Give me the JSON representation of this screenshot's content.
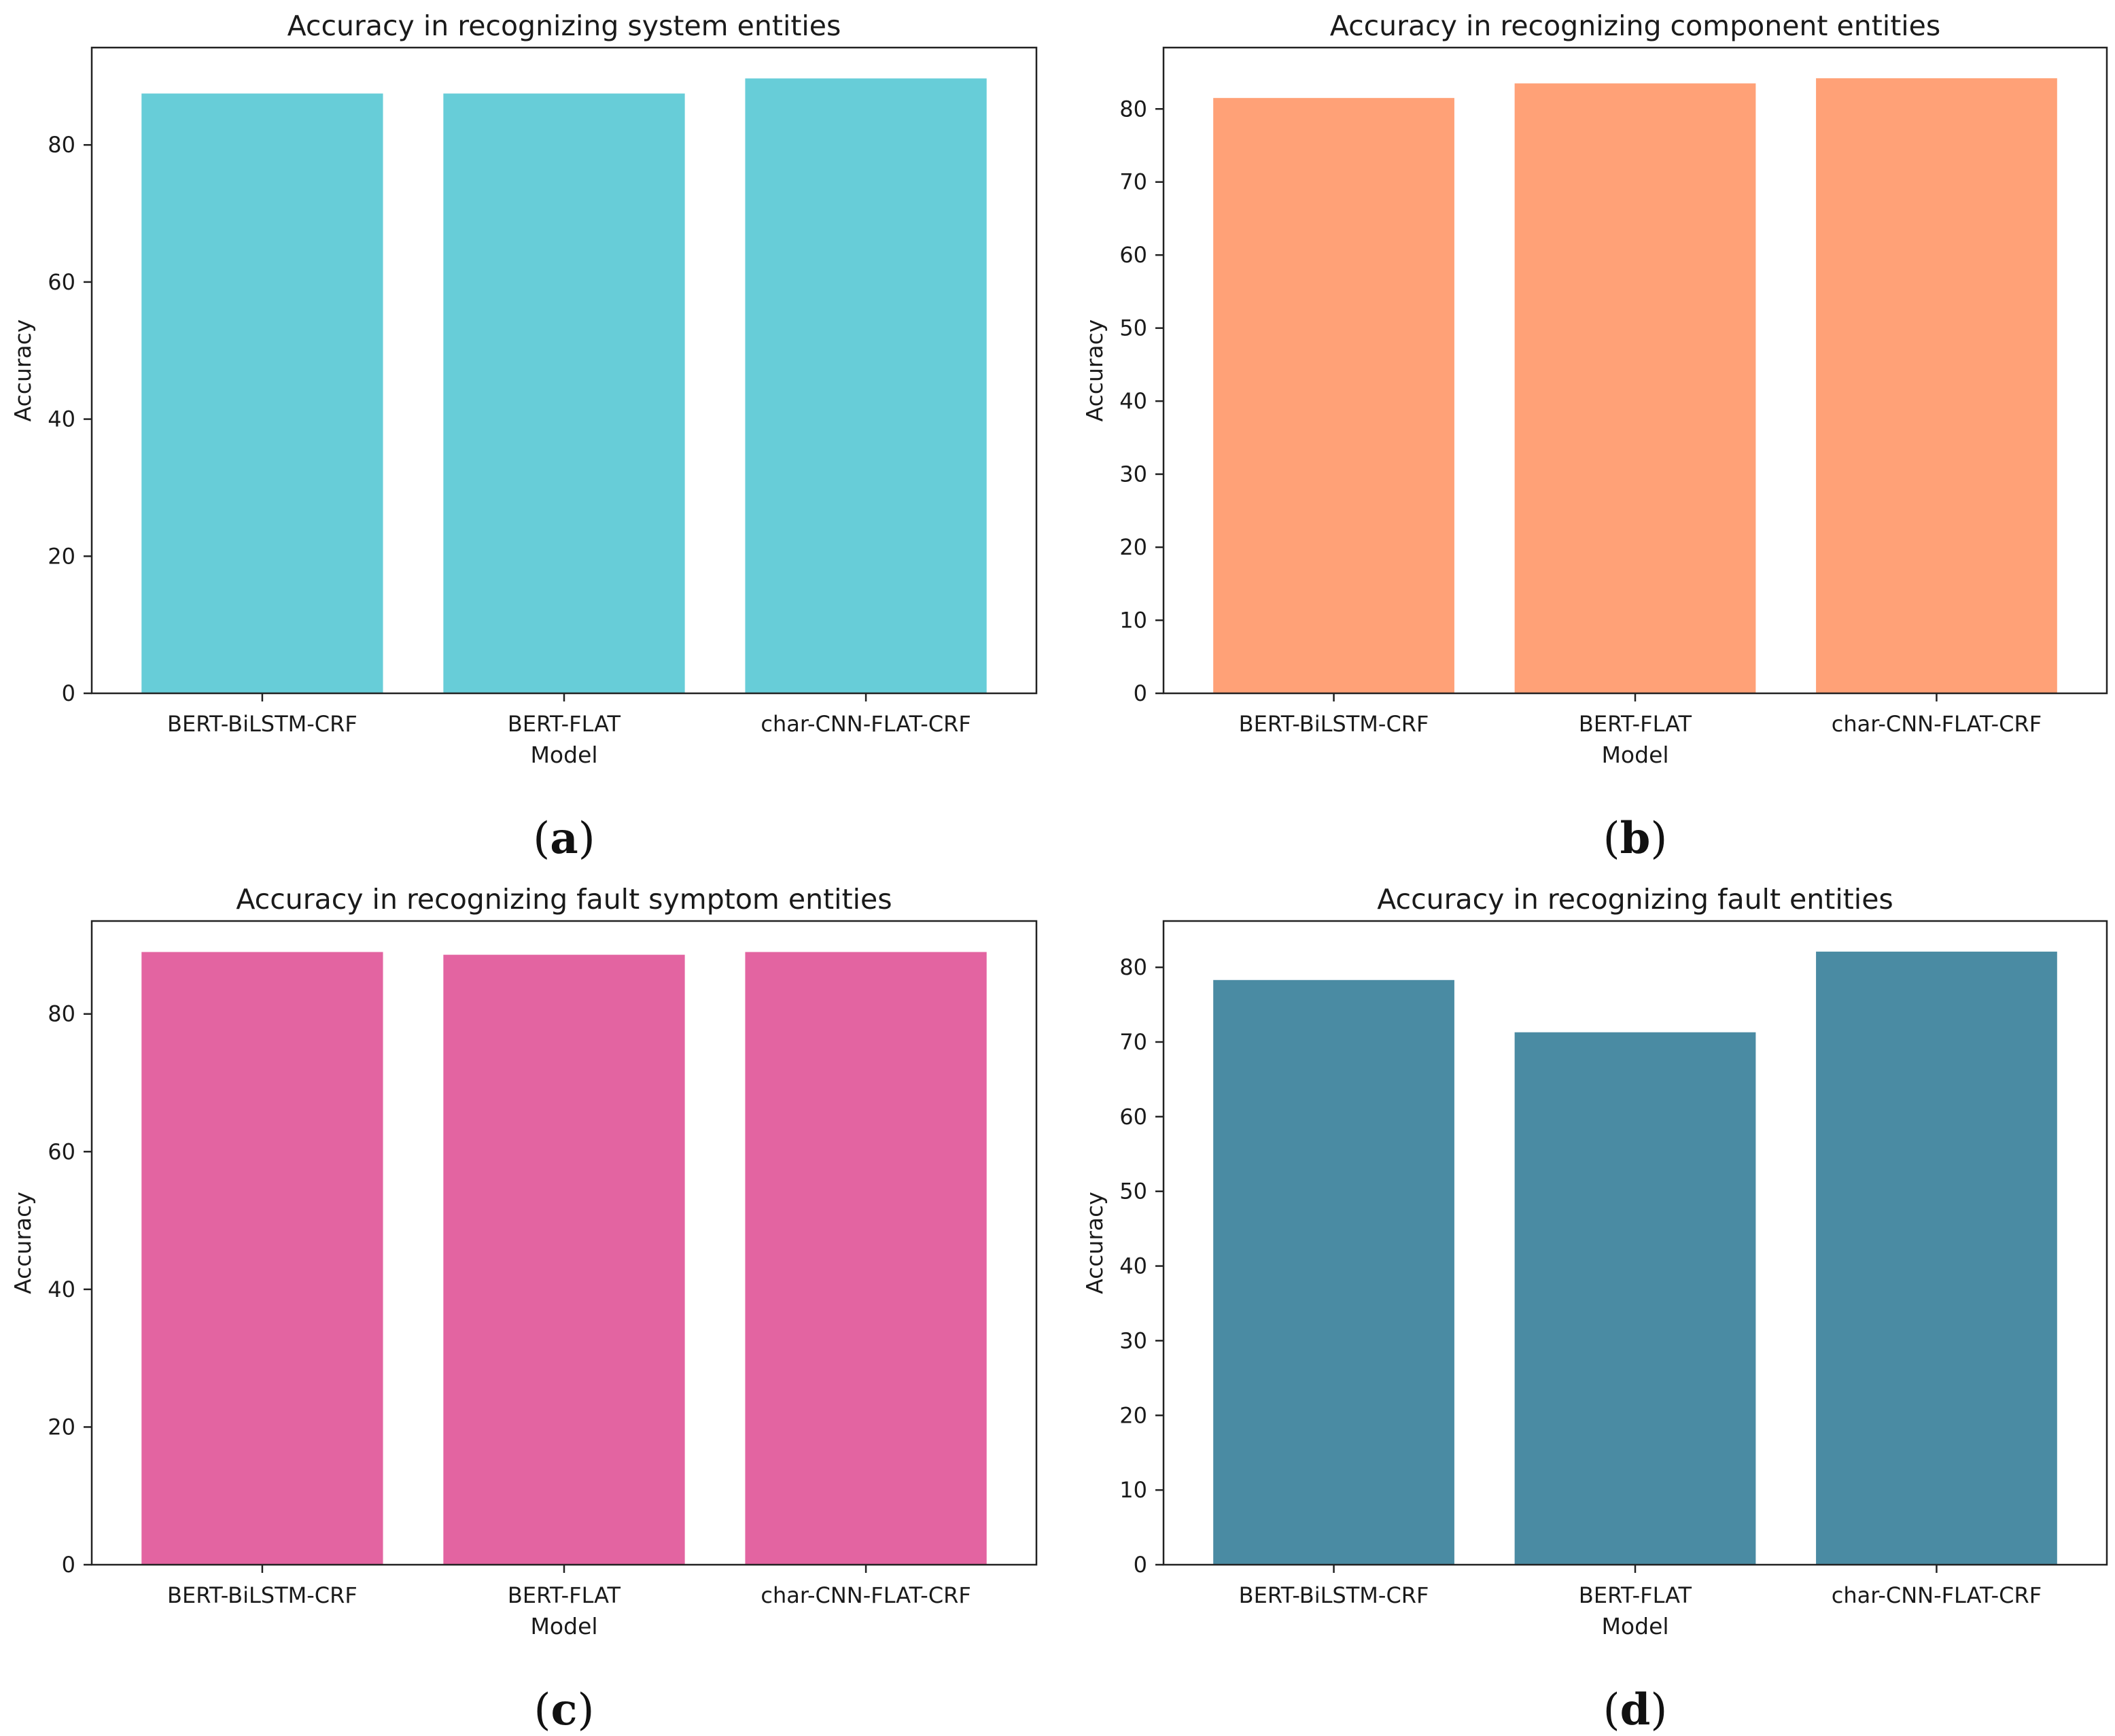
{
  "chart_data": [
    {
      "type": "bar",
      "panel_label": "a",
      "title": "Accuracy in recognizing system entities",
      "xlabel": "Model",
      "ylabel": "Accuracy",
      "categories": [
        "BERT-BiLSTM-CRF",
        "BERT-FLAT",
        "char-CNN-FLAT-CRF"
      ],
      "values": [
        87.5,
        87.5,
        89.7
      ],
      "ylim": [
        0,
        94.2
      ],
      "yticks": [
        0,
        20,
        40,
        60,
        80
      ],
      "color": "#67CDD8",
      "grid": false
    },
    {
      "type": "bar",
      "panel_label": "b",
      "title": "Accuracy in recognizing component entities",
      "xlabel": "Model",
      "ylabel": "Accuracy",
      "categories": [
        "BERT-BiLSTM-CRF",
        "BERT-FLAT",
        "char-CNN-FLAT-CRF"
      ],
      "values": [
        81.5,
        83.5,
        84.2
      ],
      "ylim": [
        0,
        88.4
      ],
      "yticks": [
        0,
        10,
        20,
        30,
        40,
        50,
        60,
        70,
        80
      ],
      "color": "#FFA177",
      "grid": false
    },
    {
      "type": "bar",
      "panel_label": "c",
      "title": "Accuracy in recognizing fault symptom entities",
      "xlabel": "Model",
      "ylabel": "Accuracy",
      "categories": [
        "BERT-BiLSTM-CRF",
        "BERT-FLAT",
        "char-CNN-FLAT-CRF"
      ],
      "values": [
        89.0,
        88.6,
        89.0
      ],
      "ylim": [
        0,
        93.5
      ],
      "yticks": [
        0,
        20,
        40,
        60,
        80
      ],
      "color": "#E364A1",
      "grid": false
    },
    {
      "type": "bar",
      "panel_label": "d",
      "title": "Accuracy in recognizing fault entities",
      "xlabel": "Model",
      "ylabel": "Accuracy",
      "categories": [
        "BERT-BiLSTM-CRF",
        "BERT-FLAT",
        "char-CNN-FLAT-CRF"
      ],
      "values": [
        78.3,
        71.3,
        82.1
      ],
      "ylim": [
        0,
        86.2
      ],
      "yticks": [
        0,
        10,
        20,
        30,
        40,
        50,
        60,
        70,
        80
      ],
      "color": "#4A8BA3",
      "grid": false
    }
  ]
}
